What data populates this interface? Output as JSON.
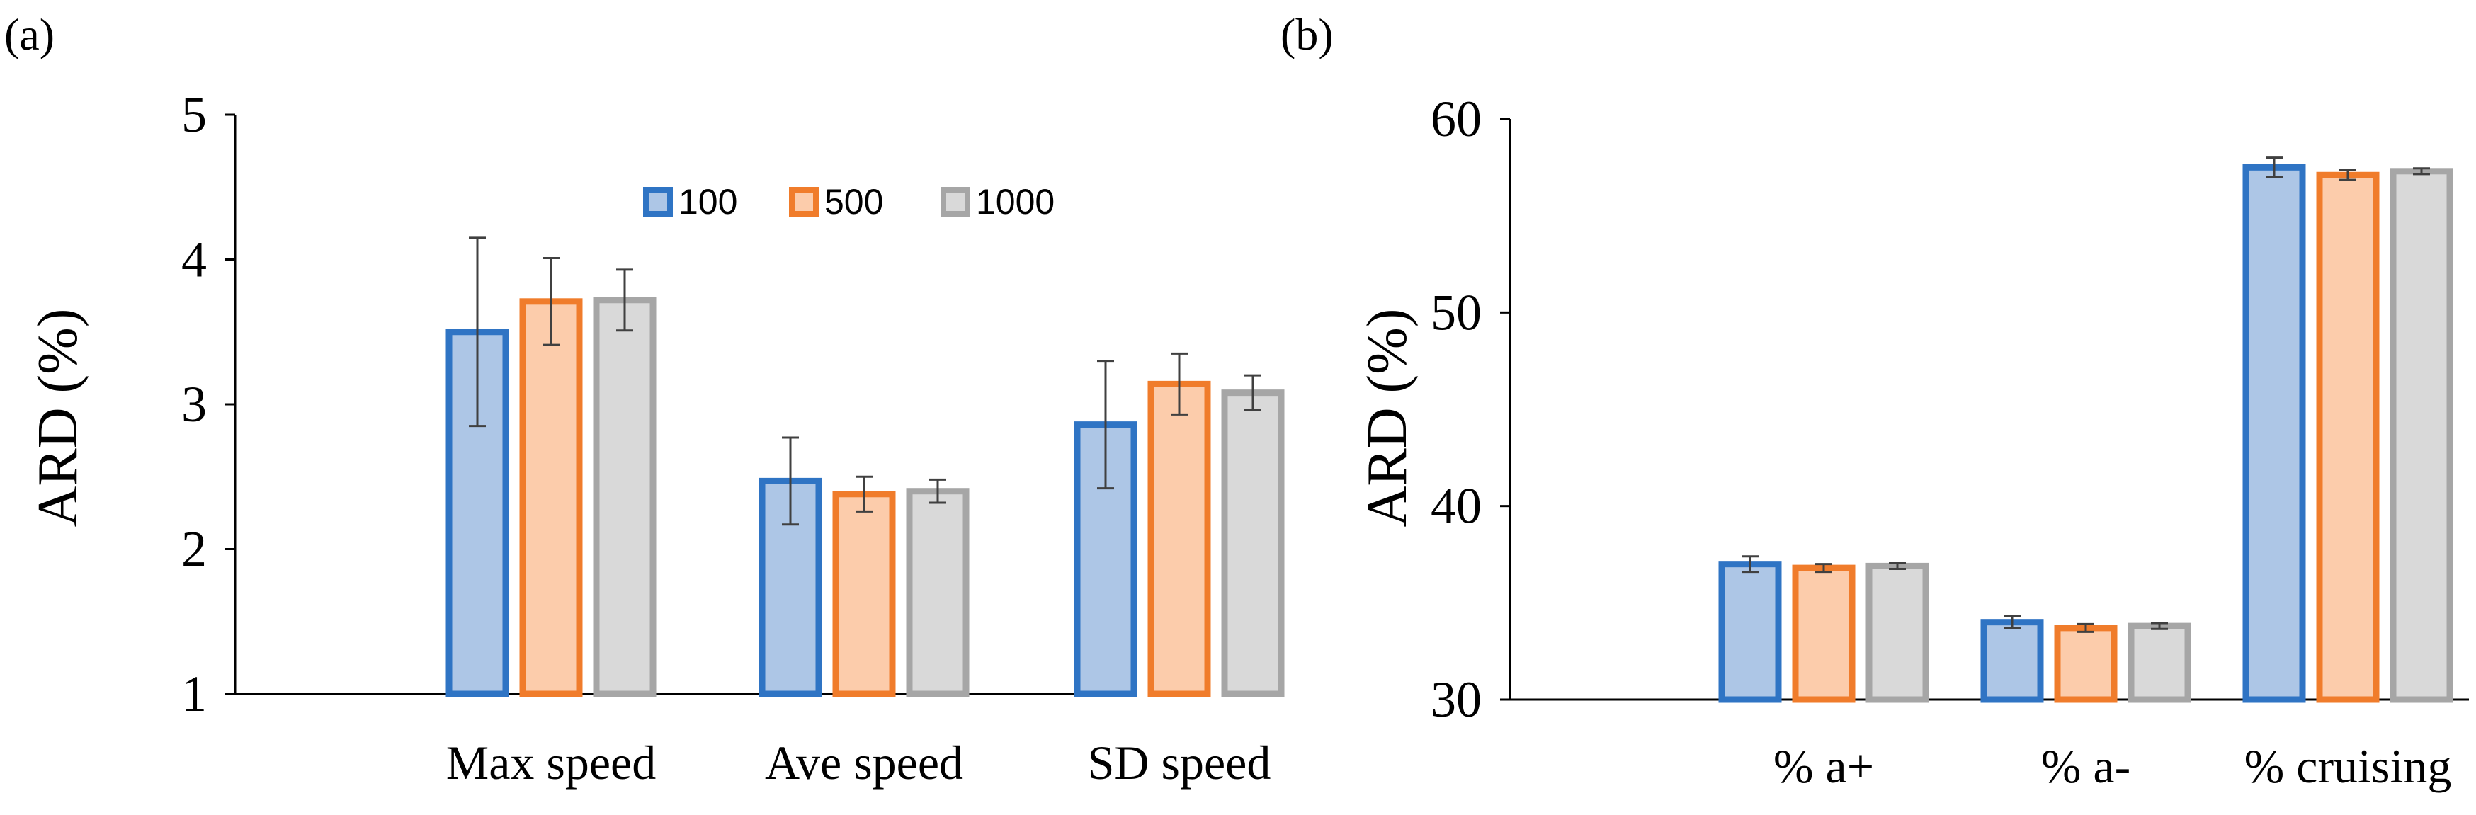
{
  "colors": {
    "s100_fill": "#adc6e6",
    "s100_edge": "#2f74c4",
    "s500_fill": "#fcccab",
    "s500_edge": "#f07c2b",
    "s1000_fill": "#d9d9d9",
    "s1000_edge": "#a6a6a6",
    "axis": "#000000",
    "errbar": "#404040"
  },
  "chart_data": [
    {
      "panel_label": "(a)",
      "type": "bar",
      "ylabel": "ARD (%)",
      "ylim": [
        1,
        5
      ],
      "yticks": [
        "1",
        "2",
        "3",
        "4",
        "5"
      ],
      "categories": [
        "Max speed",
        "Ave speed",
        "SD speed"
      ],
      "legend": {
        "position": "top-right",
        "entries": [
          "100",
          "500",
          "1000"
        ]
      },
      "series": [
        {
          "name": "100",
          "values": [
            3.5,
            2.47,
            2.86
          ],
          "errors": [
            0.65,
            0.3,
            0.44
          ]
        },
        {
          "name": "500",
          "values": [
            3.71,
            2.38,
            3.14
          ],
          "errors": [
            0.3,
            0.12,
            0.21
          ]
        },
        {
          "name": "1000",
          "values": [
            3.72,
            2.4,
            3.08
          ],
          "errors": [
            0.21,
            0.08,
            0.12
          ]
        }
      ]
    },
    {
      "panel_label": "(b)",
      "type": "bar",
      "ylabel": "ARD (%)",
      "ylim": [
        30,
        60
      ],
      "yticks": [
        "30",
        "40",
        "50",
        "60"
      ],
      "categories": [
        "% a+",
        "% a-",
        "% cruising"
      ],
      "series": [
        {
          "name": "100",
          "values": [
            37.0,
            34.0,
            57.5
          ],
          "errors": [
            0.4,
            0.3,
            0.5
          ]
        },
        {
          "name": "500",
          "values": [
            36.8,
            33.7,
            57.1
          ],
          "errors": [
            0.2,
            0.2,
            0.25
          ]
        },
        {
          "name": "1000",
          "values": [
            36.9,
            33.8,
            57.3
          ],
          "errors": [
            0.15,
            0.15,
            0.15
          ]
        }
      ]
    }
  ]
}
